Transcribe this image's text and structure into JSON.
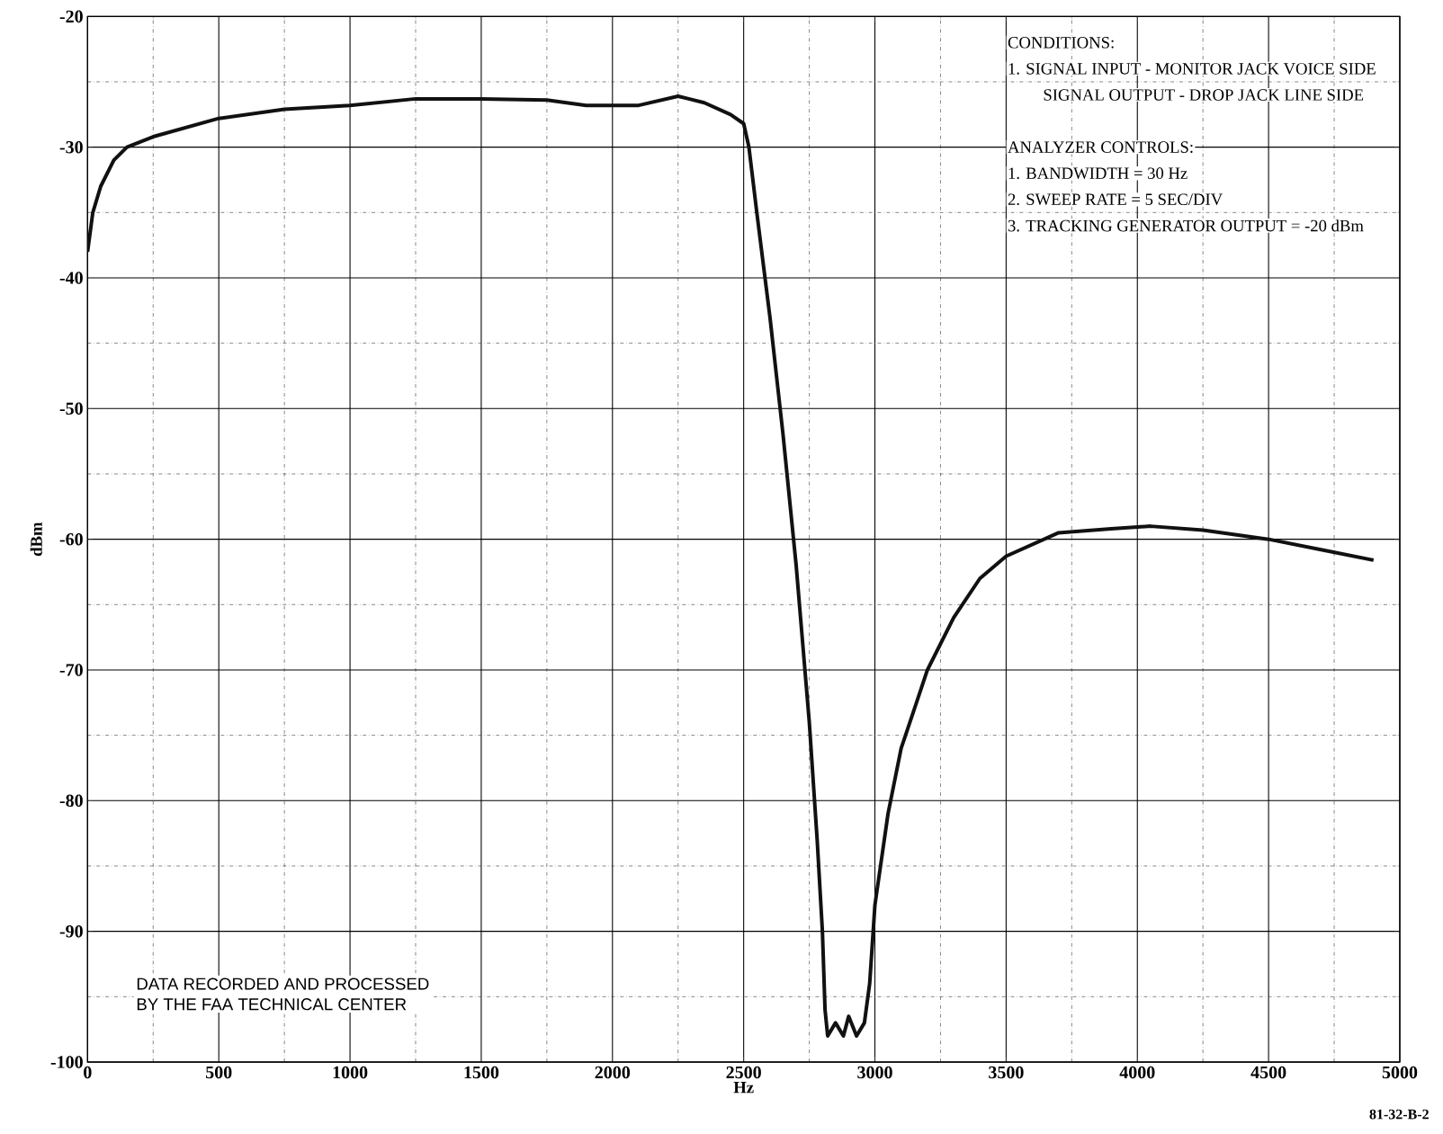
{
  "chart_data": {
    "type": "line",
    "xlabel": "Hz",
    "ylabel": "dBm",
    "x": [
      0,
      20,
      50,
      100,
      150,
      250,
      500,
      750,
      1000,
      1250,
      1500,
      1750,
      1900,
      2100,
      2250,
      2350,
      2450,
      2500,
      2520,
      2550,
      2600,
      2650,
      2700,
      2750,
      2780,
      2800,
      2810,
      2820,
      2850,
      2880,
      2900,
      2930,
      2960,
      2980,
      3000,
      3050,
      3100,
      3200,
      3300,
      3400,
      3500,
      3700,
      3900,
      4050,
      4250,
      4500,
      4700,
      4900
    ],
    "series": [
      {
        "color": "#111111",
        "values": [
          -38,
          -35,
          -33,
          -31,
          -30,
          -29.2,
          -27.8,
          -27.1,
          -26.8,
          -26.3,
          -26.3,
          -26.4,
          -26.8,
          -26.8,
          -26.1,
          -26.6,
          -27.5,
          -28.2,
          -30,
          -35,
          -43,
          -52,
          -62,
          -74,
          -83,
          -90,
          -96,
          -98,
          -97,
          -98,
          -96.5,
          -98,
          -97,
          -94,
          -88,
          -81,
          -76,
          -70,
          -66,
          -63,
          -61.3,
          -59.5,
          -59.2,
          -59,
          -59.3,
          -60,
          -60.8,
          -61.6
        ]
      }
    ],
    "xlim": [
      0,
      5000
    ],
    "ylim": [
      -100,
      -20
    ],
    "xticks": [
      0,
      500,
      1000,
      1500,
      2000,
      2500,
      3000,
      3500,
      4000,
      4500,
      5000
    ],
    "yticks": [
      -100,
      -90,
      -80,
      -70,
      -60,
      -50,
      -40,
      -30,
      -20
    ],
    "grid": true,
    "line_style": "solid",
    "marker": "none",
    "annotations": [
      "CONDITIONS:",
      "1.  SIGNAL INPUT - MONITOR JACK VOICE SIDE",
      "SIGNAL OUTPUT - DROP JACK LINE SIDE",
      "ANALYZER CONTROLS:",
      "1.  BANDWIDTH = 30 Hz",
      "2.  SWEEP RATE = 5 SEC/DIV",
      "3.  TRACKING GENERATOR OUTPUT = -20 dBm",
      "DATA RECORDED AND PROCESSED",
      "BY THE FAA TECHNICAL CENTER",
      "81-32-B-2"
    ]
  }
}
